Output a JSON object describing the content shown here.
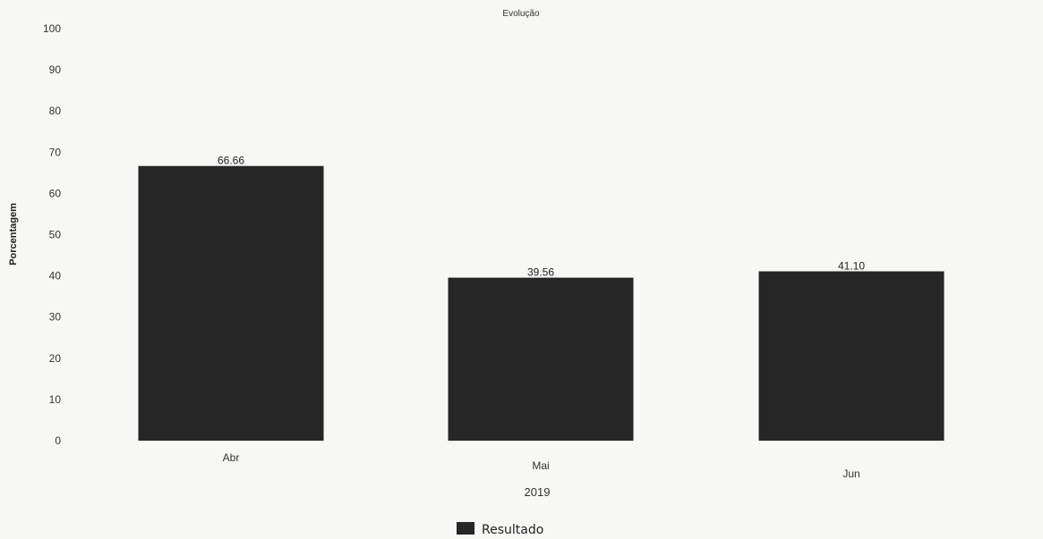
{
  "chart_data": {
    "type": "bar",
    "title": "Evolução",
    "xlabel": "2019",
    "ylabel": "Porcentagem",
    "categories": [
      "Abr",
      "Mai",
      "Jun"
    ],
    "series": [
      {
        "name": "Resultado",
        "values": [
          66.66,
          39.56,
          41.1
        ],
        "labels": [
          "66.66",
          "39.56",
          "41.10"
        ]
      }
    ],
    "ylim": [
      0,
      100
    ],
    "yticks": [
      0,
      10,
      20,
      30,
      40,
      50,
      60,
      70,
      80,
      90,
      100
    ],
    "grid": false,
    "legend_position": "bottom-center",
    "colors": {
      "bar": "#262626",
      "background": "#f7f7f5"
    }
  }
}
